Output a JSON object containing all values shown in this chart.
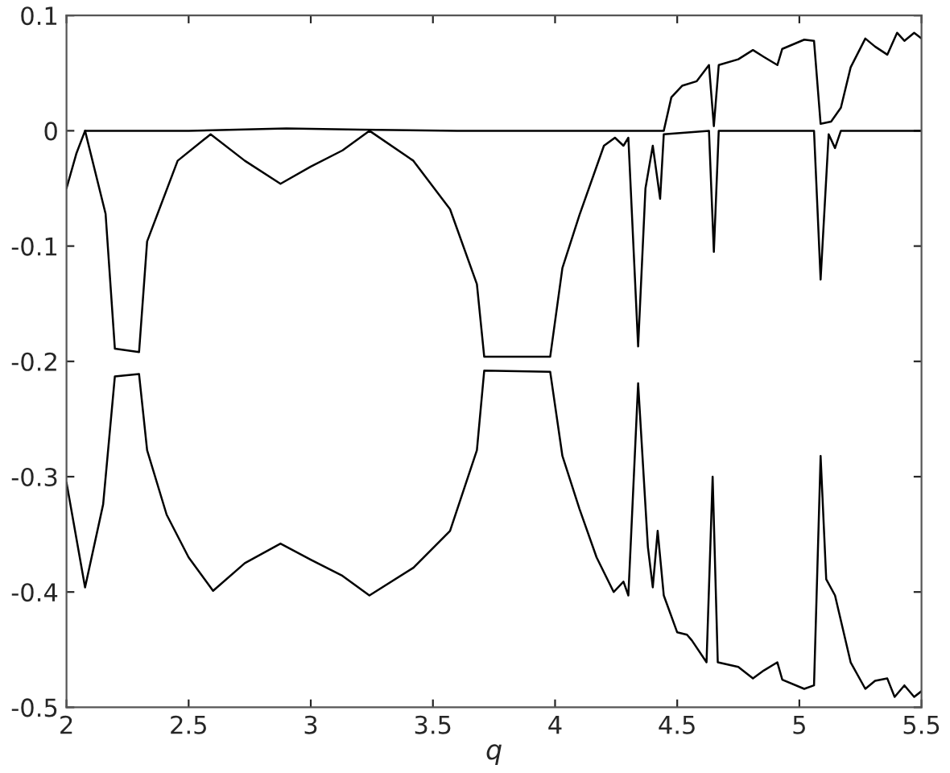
{
  "chart_data": {
    "type": "line",
    "xlabel": "q",
    "xlim": [
      2,
      5.5
    ],
    "ylim": [
      -0.5,
      0.1
    ],
    "xticks": [
      2,
      2.5,
      3,
      3.5,
      4,
      4.5,
      5,
      5.5
    ],
    "yticks": [
      -0.5,
      -0.4,
      -0.3,
      -0.2,
      -0.1,
      0,
      0.1
    ],
    "grid": false,
    "legend": false,
    "marker": "none",
    "line_style": "solid",
    "series": [
      {
        "color": "#000000",
        "x": [
          2.076,
          2.5,
          2.9,
          3.2,
          3.6,
          4.0,
          4.4,
          4.445,
          4.476,
          4.52,
          4.58,
          4.63,
          4.65,
          4.67,
          4.75,
          4.81,
          4.855,
          4.91,
          4.93,
          5.02,
          5.06,
          5.087,
          5.13,
          5.17,
          5.21,
          5.27,
          5.31,
          5.36,
          5.4,
          5.43,
          5.47,
          5.5
        ],
        "values": [
          0,
          0,
          0.002,
          0.001,
          0,
          0,
          0,
          0,
          0.029,
          0.039,
          0.043,
          0.057,
          0.004,
          0.057,
          0.062,
          0.07,
          0.064,
          0.057,
          0.071,
          0.079,
          0.078,
          0.006,
          0.008,
          0.02,
          0.055,
          0.08,
          0.073,
          0.066,
          0.085,
          0.078,
          0.085,
          0.08
        ]
      },
      {
        "color": "#000000",
        "x": [
          2,
          2.04,
          2.076,
          2.16,
          2.198,
          2.297,
          2.33,
          2.455,
          2.59,
          2.73,
          2.876,
          3.0,
          3.13,
          3.24,
          3.42,
          3.57,
          3.68,
          3.71,
          3.98,
          4.03,
          4.1,
          4.2,
          4.245,
          4.28,
          4.3,
          4.34,
          4.37,
          4.4,
          4.43,
          4.445,
          4.63,
          4.65,
          4.67,
          5.06,
          5.087,
          5.12,
          5.146,
          5.17,
          5.5
        ],
        "values": [
          -0.05,
          -0.02,
          0,
          -0.072,
          -0.189,
          -0.192,
          -0.096,
          -0.026,
          -0.003,
          -0.026,
          -0.046,
          -0.031,
          -0.017,
          0,
          -0.026,
          -0.068,
          -0.133,
          -0.196,
          -0.196,
          -0.119,
          -0.073,
          -0.013,
          -0.006,
          -0.013,
          -0.006,
          -0.187,
          -0.05,
          -0.013,
          -0.059,
          -0.003,
          0,
          -0.105,
          0,
          0,
          -0.129,
          -0.003,
          -0.015,
          0,
          0
        ]
      },
      {
        "color": "#000000",
        "x": [
          2,
          2.076,
          2.15,
          2.198,
          2.297,
          2.33,
          2.41,
          2.5,
          2.6,
          2.73,
          2.876,
          3.0,
          3.13,
          3.24,
          3.42,
          3.57,
          3.68,
          3.71,
          3.98,
          4.03,
          4.1,
          4.17,
          4.24,
          4.28,
          4.3,
          4.34,
          4.38,
          4.4,
          4.42,
          4.445,
          4.5,
          4.54,
          4.56,
          4.62,
          4.645,
          4.666,
          4.75,
          4.81,
          4.855,
          4.91,
          4.93,
          5.02,
          5.06,
          5.087,
          5.11,
          5.146,
          5.21,
          5.27,
          5.31,
          5.36,
          5.39,
          5.43,
          5.47,
          5.5
        ],
        "values": [
          -0.305,
          -0.396,
          -0.324,
          -0.213,
          -0.211,
          -0.277,
          -0.333,
          -0.37,
          -0.399,
          -0.375,
          -0.358,
          -0.372,
          -0.386,
          -0.403,
          -0.379,
          -0.347,
          -0.277,
          -0.208,
          -0.209,
          -0.282,
          -0.328,
          -0.37,
          -0.4,
          -0.391,
          -0.403,
          -0.219,
          -0.361,
          -0.396,
          -0.347,
          -0.403,
          -0.435,
          -0.437,
          -0.442,
          -0.461,
          -0.3,
          -0.461,
          -0.465,
          -0.475,
          -0.468,
          -0.461,
          -0.476,
          -0.484,
          -0.481,
          -0.282,
          -0.389,
          -0.403,
          -0.461,
          -0.484,
          -0.477,
          -0.475,
          -0.491,
          -0.481,
          -0.491,
          -0.486
        ]
      }
    ]
  }
}
